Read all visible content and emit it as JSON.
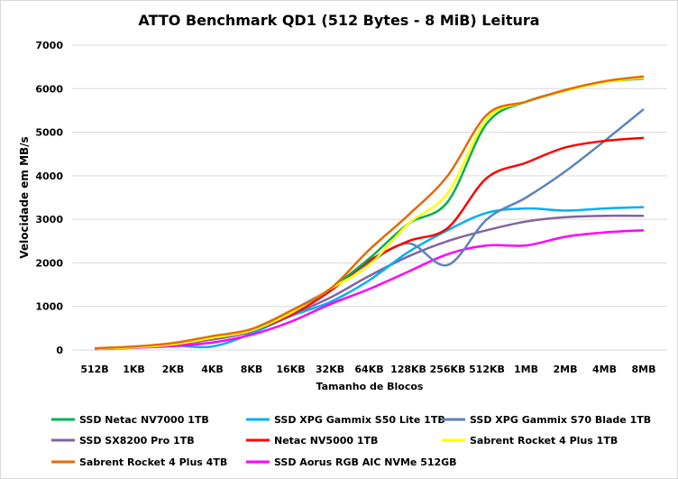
{
  "chart_data": {
    "type": "line",
    "title": "ATTO Benchmark QD1 (512 Bytes - 8 MiB) Leitura",
    "xlabel": "Tamanho  de Blocos",
    "ylabel": "Velocidade em MB/s",
    "ylim": [
      0,
      7000
    ],
    "yticks": [
      0,
      1000,
      2000,
      3000,
      4000,
      5000,
      6000,
      7000
    ],
    "grid": true,
    "legend_position": "bottom",
    "categories": [
      "512B",
      "1KB",
      "2KB",
      "4KB",
      "8KB",
      "16KB",
      "32KB",
      "64KB",
      "128KB",
      "256KB",
      "512KB",
      "1MB",
      "2MB",
      "4MB",
      "8MB"
    ],
    "series": [
      {
        "name": "SSD Netac NV7000 1TB",
        "color": "#00b050",
        "values": [
          30,
          60,
          130,
          280,
          450,
          850,
          1400,
          2100,
          2900,
          3400,
          5200,
          5700,
          5950,
          6150,
          6230
        ]
      },
      {
        "name": "SSD XPG Gammix S50 Lite 1TB",
        "color": "#00b0f0",
        "values": [
          20,
          50,
          100,
          80,
          380,
          780,
          1100,
          1600,
          2250,
          2750,
          3150,
          3250,
          3200,
          3250,
          3280
        ]
      },
      {
        "name": "SSD XPG Gammix S70 Blade 1TB",
        "color": "#5b83be",
        "values": [
          30,
          60,
          130,
          280,
          480,
          900,
          1400,
          2000,
          2450,
          1950,
          3000,
          3500,
          4100,
          4800,
          5530
        ]
      },
      {
        "name": "SSD SX8200 Pro 1TB",
        "color": "#8064a2",
        "values": [
          30,
          60,
          120,
          240,
          420,
          800,
          1200,
          1700,
          2150,
          2500,
          2750,
          2950,
          3050,
          3080,
          3080
        ]
      },
      {
        "name": "Netac NV5000 1TB",
        "color": "#ff0000",
        "values": [
          30,
          60,
          130,
          280,
          450,
          800,
          1350,
          2050,
          2500,
          2800,
          3950,
          4300,
          4650,
          4800,
          4870
        ]
      },
      {
        "name": "Sabrent Rocket 4 Plus 1TB",
        "color": "#ffff00",
        "values": [
          30,
          60,
          130,
          280,
          450,
          850,
          1400,
          1950,
          2900,
          3600,
          5300,
          5700,
          5950,
          6150,
          6250
        ]
      },
      {
        "name": "Sabrent Rocket 4 Plus 4TB",
        "color": "#e36c0a",
        "values": [
          40,
          80,
          160,
          320,
          480,
          900,
          1400,
          2300,
          3100,
          4000,
          5400,
          5700,
          5970,
          6170,
          6280
        ]
      },
      {
        "name": "SSD Aorus RGB AIC NVMe 512GB",
        "color": "#ff00ff",
        "values": [
          20,
          50,
          90,
          170,
          350,
          650,
          1050,
          1400,
          1800,
          2200,
          2400,
          2400,
          2600,
          2700,
          2750
        ]
      }
    ]
  }
}
